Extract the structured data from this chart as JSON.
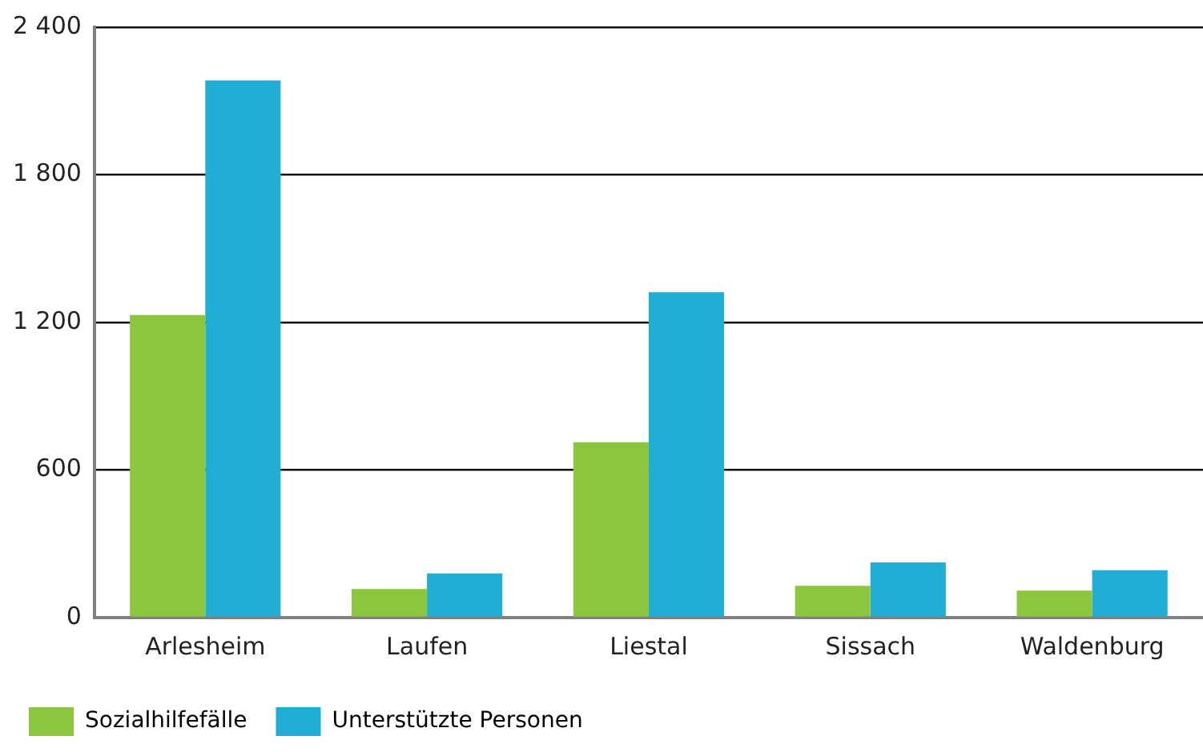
{
  "chart_data": {
    "type": "bar",
    "categories": [
      "Arlesheim",
      "Laufen",
      "Liestal",
      "Sissach",
      "Waldenburg"
    ],
    "series": [
      {
        "name": "Sozialhilfefälle",
        "color": "#8cc63f",
        "values": [
          1230,
          116,
          713,
          129,
          110
        ]
      },
      {
        "name": "Unterstützte Personen",
        "color": "#22aed4",
        "values": [
          2184,
          180,
          1323,
          224,
          193
        ]
      }
    ],
    "ylim": [
      0,
      2400
    ],
    "yticks": [
      0,
      600,
      {
        "value": 1200,
        "label": "1 200"
      },
      {
        "value": 1800,
        "label": "1 800"
      },
      {
        "value": 2400,
        "label": "2 400"
      }
    ],
    "grid": "y",
    "legend": "bottom"
  }
}
